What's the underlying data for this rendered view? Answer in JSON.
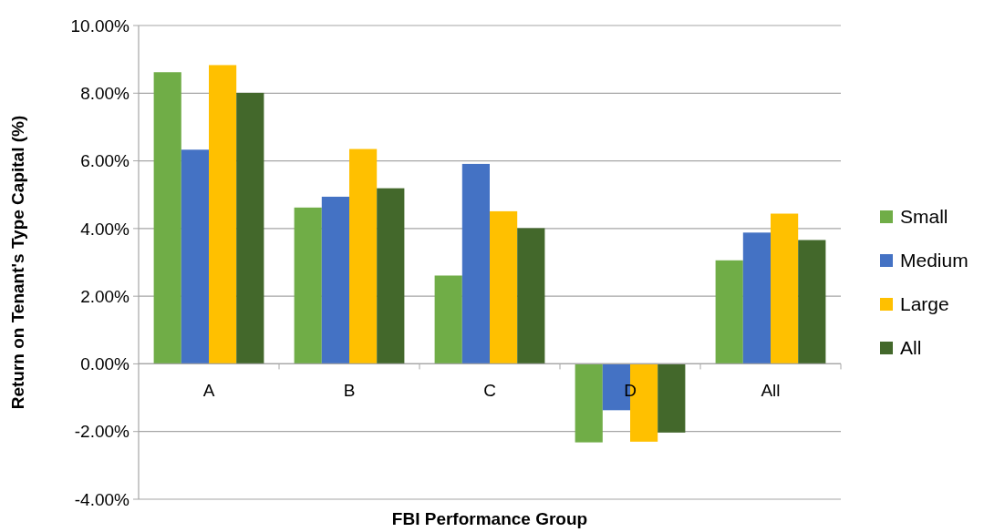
{
  "chart_data": {
    "type": "bar",
    "xlabel": "FBI Performance Group",
    "ylabel": "Return on Tenant's Type Capital (%)",
    "categories": [
      "A",
      "B",
      "C",
      "D",
      "All"
    ],
    "series": [
      {
        "name": "Small",
        "color": "#70ad47",
        "values": [
          8.62,
          4.62,
          2.61,
          -2.32,
          3.06
        ]
      },
      {
        "name": "Medium",
        "color": "#4472c4",
        "values": [
          6.33,
          4.94,
          5.91,
          -1.37,
          3.88
        ]
      },
      {
        "name": "Large",
        "color": "#ffc000",
        "values": [
          8.83,
          6.35,
          4.51,
          -2.3,
          4.44
        ]
      },
      {
        "name": "All",
        "color": "#43682b",
        "values": [
          8.01,
          5.19,
          4.01,
          -2.03,
          3.66
        ]
      }
    ],
    "ylim": [
      -4,
      10
    ],
    "yticks": [
      {
        "value": -4,
        "label": "-4.00%"
      },
      {
        "value": -2,
        "label": "-2.00%"
      },
      {
        "value": 0,
        "label": "0.00%"
      },
      {
        "value": 2,
        "label": "2.00%"
      },
      {
        "value": 4,
        "label": "4.00%"
      },
      {
        "value": 6,
        "label": "6.00%"
      },
      {
        "value": 8,
        "label": "8.00%"
      },
      {
        "value": 10,
        "label": "10.00%"
      }
    ],
    "grid": "y",
    "legend": "right"
  }
}
